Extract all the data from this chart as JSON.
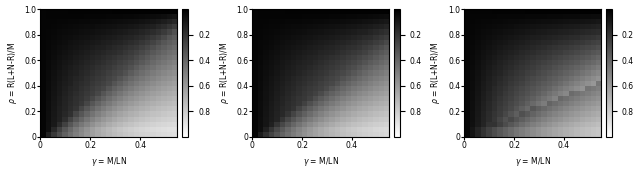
{
  "n_gamma": 25,
  "n_rho": 25,
  "gamma_max": 0.55,
  "rho_max": 1.0,
  "gamma_ticks": [
    0,
    0.2,
    0.4
  ],
  "rho_ticks": [
    0,
    0.2,
    0.4,
    0.6,
    0.8,
    1.0
  ],
  "colorbar_ticks": [
    0.2,
    0.4,
    0.6,
    0.8
  ],
  "xlabel": "$\\gamma$ = M/LN",
  "ylabel": "$\\rho$ = R(L+N-R)/M",
  "cmap": "gray",
  "figsize": [
    6.4,
    1.74
  ],
  "dpi": 100,
  "panel_params": [
    {
      "k1": 6.0,
      "k2": 1.5,
      "floor": 0.03
    },
    {
      "k1": 5.0,
      "k2": 1.3,
      "floor": 0.03
    },
    {
      "k1": 3.5,
      "k2": 1.1,
      "floor": 0.05
    }
  ]
}
